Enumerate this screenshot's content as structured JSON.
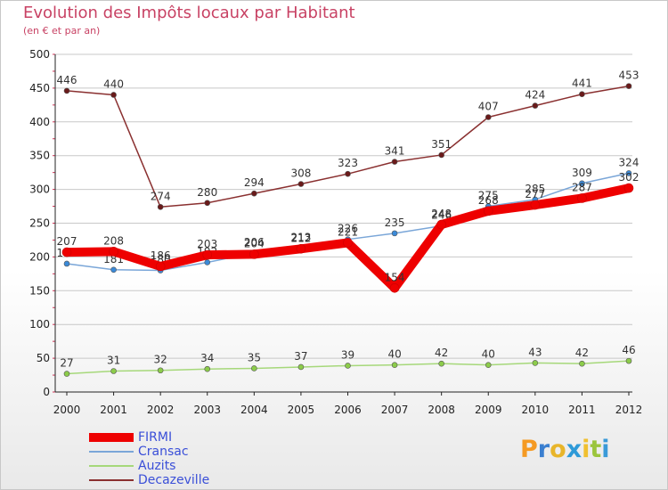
{
  "header": {
    "title": "Evolution des Impôts locaux par Habitant",
    "subtitle": "(en € et par an)"
  },
  "logo": {
    "letters": [
      "P",
      "r",
      "o",
      "x",
      "i",
      "t",
      "i"
    ],
    "colors": [
      "#f59a23",
      "#3a7fd0",
      "#e8b52a",
      "#2e9ad8",
      "#f0c030",
      "#9bc53d",
      "#3a9ad8"
    ]
  },
  "colors": {
    "title": "#c84264",
    "axis_text": "#222222",
    "grid": "#c8c8c8"
  },
  "chart_data": {
    "type": "line",
    "title": "Evolution des Impôts locaux par Habitant",
    "subtitle": "(en € et par an)",
    "xlabel": "",
    "ylabel": "",
    "ylim": [
      0,
      500
    ],
    "yticks": [
      0,
      50,
      100,
      150,
      200,
      250,
      300,
      350,
      400,
      450,
      500
    ],
    "categories": [
      "2000",
      "2001",
      "2002",
      "2003",
      "2004",
      "2005",
      "2006",
      "2007",
      "2008",
      "2009",
      "2010",
      "2011",
      "2012"
    ],
    "series": [
      {
        "name": "FIRMI",
        "color": "#ee0000",
        "marker": "#ee0000",
        "width": 10,
        "values": [
          207,
          208,
          186,
          203,
          204,
          212,
          221,
          154,
          248,
          268,
          277,
          287,
          302
        ]
      },
      {
        "name": "Cransac",
        "color": "#7aa6d8",
        "marker": "#3b8ad8",
        "width": 1.5,
        "values": [
          190,
          181,
          180,
          192,
          206,
          213,
          226,
          235,
          246,
          275,
          285,
          309,
          324
        ]
      },
      {
        "name": "Auzits",
        "color": "#a6d87a",
        "marker": "#8ccc4a",
        "width": 1.5,
        "values": [
          27,
          31,
          32,
          34,
          35,
          37,
          39,
          40,
          42,
          40,
          43,
          42,
          46
        ]
      },
      {
        "name": "Decazeville",
        "color": "#8a3030",
        "marker": "#6a1a1a",
        "width": 1.5,
        "values": [
          446,
          440,
          274,
          280,
          294,
          308,
          323,
          341,
          351,
          407,
          424,
          441,
          453
        ]
      }
    ],
    "legend_position": "bottom-left",
    "grid": true
  }
}
